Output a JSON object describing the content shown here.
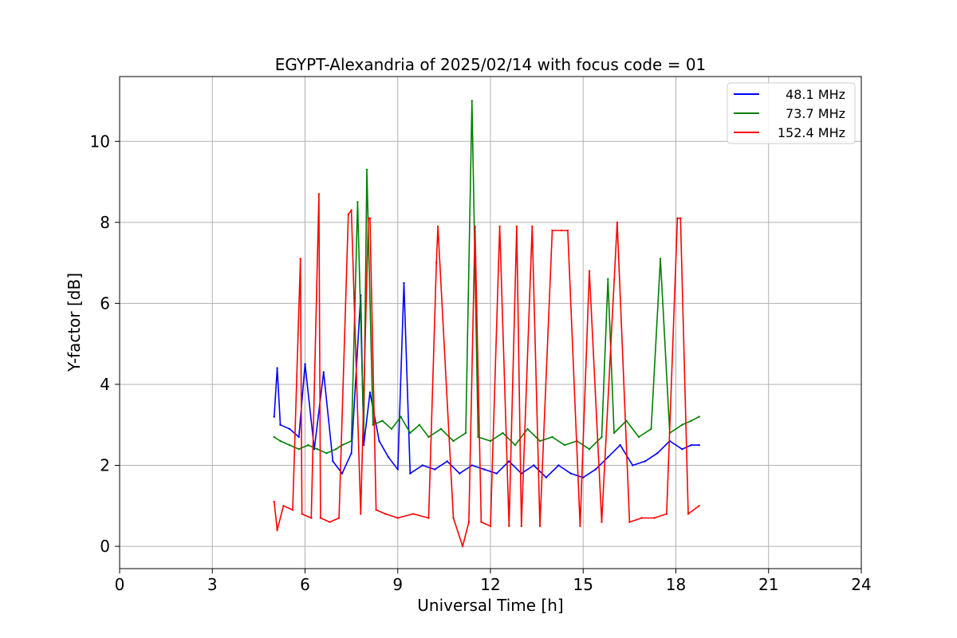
{
  "chart_data": {
    "type": "line",
    "title": "EGYPT-Alexandria of 2025/02/14 with focus code = 01",
    "xlabel": "Universal Time [h]",
    "ylabel": "Y-factor [dB]",
    "xlim": [
      0,
      24
    ],
    "ylim": [
      -0.55,
      11.6
    ],
    "xticks": [
      0,
      3,
      6,
      9,
      12,
      15,
      18,
      21,
      24
    ],
    "yticks": [
      0,
      2,
      4,
      6,
      8,
      10
    ],
    "grid": true,
    "legend": "top-right",
    "series": [
      {
        "name": "48.1 MHz",
        "color": "#0000ff",
        "x": [
          5.0,
          5.1,
          5.2,
          5.5,
          5.8,
          6.0,
          6.3,
          6.6,
          6.9,
          7.2,
          7.5,
          7.8,
          7.9,
          8.1,
          8.4,
          8.7,
          9.0,
          9.2,
          9.4,
          9.8,
          10.2,
          10.6,
          11.0,
          11.4,
          11.8,
          12.2,
          12.6,
          13.0,
          13.4,
          13.8,
          14.2,
          14.6,
          15.0,
          15.4,
          15.8,
          16.2,
          16.6,
          17.0,
          17.4,
          17.8,
          18.2,
          18.5,
          18.75
        ],
        "y": [
          3.2,
          4.4,
          3.0,
          2.9,
          2.7,
          4.5,
          2.4,
          4.3,
          2.1,
          1.8,
          2.3,
          6.2,
          2.5,
          3.8,
          2.6,
          2.2,
          1.9,
          6.5,
          1.8,
          2.0,
          1.9,
          2.1,
          1.8,
          2.0,
          1.9,
          1.8,
          2.1,
          1.8,
          2.0,
          1.7,
          2.0,
          1.8,
          1.7,
          1.9,
          2.2,
          2.5,
          2.0,
          2.1,
          2.3,
          2.6,
          2.4,
          2.5,
          2.5
        ]
      },
      {
        "name": "73.7 MHz",
        "color": "#008000",
        "x": [
          5.0,
          5.2,
          5.5,
          5.8,
          6.1,
          6.4,
          6.7,
          7.0,
          7.2,
          7.5,
          7.7,
          7.9,
          8.0,
          8.2,
          8.5,
          8.8,
          9.1,
          9.4,
          9.7,
          10.0,
          10.4,
          10.8,
          11.2,
          11.4,
          11.6,
          12.0,
          12.4,
          12.8,
          13.2,
          13.6,
          14.0,
          14.4,
          14.8,
          15.2,
          15.6,
          15.8,
          16.0,
          16.4,
          16.8,
          17.2,
          17.5,
          17.8,
          18.2,
          18.5,
          18.75
        ],
        "y": [
          2.7,
          2.6,
          2.5,
          2.4,
          2.5,
          2.4,
          2.3,
          2.4,
          2.5,
          2.6,
          8.5,
          2.8,
          9.3,
          3.0,
          3.1,
          2.9,
          3.2,
          2.8,
          3.0,
          2.7,
          2.9,
          2.6,
          2.8,
          11.0,
          2.7,
          2.6,
          2.8,
          2.5,
          2.9,
          2.6,
          2.7,
          2.5,
          2.6,
          2.4,
          2.7,
          6.6,
          2.8,
          3.1,
          2.7,
          2.9,
          7.1,
          2.8,
          3.0,
          3.1,
          3.2
        ]
      },
      {
        "name": "152.4 MHz",
        "color": "#ff0000",
        "x": [
          5.0,
          5.1,
          5.3,
          5.6,
          5.85,
          5.9,
          6.2,
          6.45,
          6.5,
          6.8,
          7.1,
          7.4,
          7.5,
          7.8,
          8.05,
          8.1,
          8.3,
          8.6,
          9.0,
          9.5,
          10.0,
          10.25,
          10.3,
          10.8,
          11.1,
          11.3,
          11.5,
          11.7,
          12.0,
          12.3,
          12.6,
          12.85,
          13.0,
          13.35,
          13.6,
          14.0,
          14.3,
          14.5,
          14.9,
          15.2,
          15.6,
          16.1,
          16.5,
          16.9,
          17.3,
          17.7,
          18.05,
          18.15,
          18.4,
          18.75
        ],
        "y": [
          1.1,
          0.4,
          1.0,
          0.9,
          7.1,
          0.8,
          0.7,
          8.7,
          0.7,
          0.6,
          0.7,
          8.2,
          8.3,
          0.8,
          8.1,
          8.1,
          0.9,
          0.8,
          0.7,
          0.8,
          0.7,
          7.0,
          7.9,
          0.7,
          0.0,
          0.6,
          7.9,
          0.6,
          0.5,
          7.9,
          0.5,
          7.9,
          0.5,
          7.9,
          0.5,
          7.8,
          7.8,
          7.8,
          0.5,
          6.8,
          0.6,
          8.0,
          0.6,
          0.7,
          0.7,
          0.8,
          8.1,
          8.1,
          0.8,
          1.0
        ]
      }
    ]
  }
}
